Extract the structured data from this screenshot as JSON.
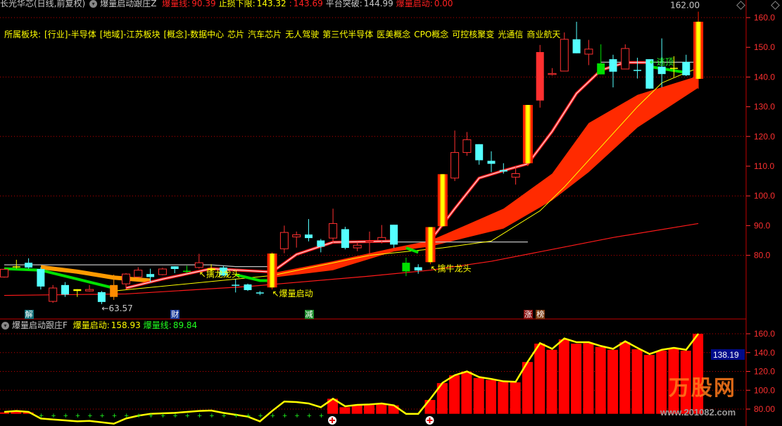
{
  "header": {
    "stock": "长光华芯(日线,前复权)",
    "indicator": "爆量启动跟庄Z",
    "items": [
      {
        "label": "爆量线:",
        "value": "90.39",
        "color": "#ff2020"
      },
      {
        "label": "止损下限:",
        "value": "143.32",
        "color": "#ffff00"
      },
      {
        "label": ":",
        "value": "143.69",
        "color": "#ff2020"
      },
      {
        "label": "平台突破:",
        "value": "144.99",
        "color": "#c8c8c8"
      },
      {
        "label": "爆量启动:",
        "value": "0.00",
        "color": "#ff2020"
      }
    ]
  },
  "sector": {
    "label": "所属板块:",
    "items": [
      "[行业]-半导体",
      "[地域]-江苏板块",
      "[概念]-数据中心",
      "芯片",
      "汽车芯片",
      "无人驾驶",
      "第三代半导体",
      "医美概念",
      "CPO概念",
      "可控核聚变",
      "光通信",
      "商业航天"
    ]
  },
  "sub_header": {
    "indicator": "爆量启动跟庄F",
    "items": [
      {
        "label": "爆量启动:",
        "value": "158.93",
        "color": "#ffff00"
      },
      {
        "label": "爆量线:",
        "value": "89.84",
        "color": "#20ff20"
      }
    ]
  },
  "markers": [
    {
      "index": 2,
      "text": "解",
      "bg": "#10707a"
    },
    {
      "index": 14,
      "text": "财",
      "bg": "#1a3a9a"
    },
    {
      "index": 25,
      "text": "减",
      "bg": "#1a8a2a"
    },
    {
      "index": 43,
      "text": "涨",
      "bg": "#8a1010"
    },
    {
      "index": 44,
      "text": "榜",
      "bg": "#7a3a10"
    }
  ],
  "logo": {
    "text": "万股网",
    "url": "www.201082.com"
  },
  "colors": {
    "up": "#ff3030",
    "down": "#54ffff",
    "signal_red": "#ff2000",
    "signal_yellow": "#ffff00",
    "signal_orange": "#ff8c00",
    "grid": "#c00000",
    "axis": "#ff3030"
  },
  "chart_data": [
    {
      "type": "candlestick",
      "panel": "main",
      "ylim": [
        63,
        163
      ],
      "yticks": [
        "160.0",
        "150.0",
        "140.0",
        "130.0",
        "120.0",
        "110.0",
        "100.0",
        "90.0",
        "80.0"
      ],
      "ytick_values": [
        160,
        150,
        140,
        130,
        120,
        110,
        100,
        90,
        80
      ],
      "grid_values": [
        160,
        140,
        120,
        100,
        80
      ],
      "candles": [
        {
          "o": 72.7,
          "h": 75.5,
          "l": 72.5,
          "c": 75.3,
          "s": "up"
        },
        {
          "o": 76,
          "h": 78.5,
          "l": 75.5,
          "c": 76.3,
          "s": "yellow"
        },
        {
          "o": 77.5,
          "h": 79,
          "l": 75.5,
          "c": 75.9,
          "s": "down"
        },
        {
          "o": 75.4,
          "h": 76,
          "l": 68.5,
          "c": 69.5,
          "s": "down"
        },
        {
          "o": 64.5,
          "h": 70,
          "l": 64,
          "c": 69,
          "s": "up"
        },
        {
          "o": 70,
          "h": 71,
          "l": 66,
          "c": 66.8,
          "s": "down"
        },
        {
          "o": 68,
          "h": 68.6,
          "l": 66,
          "c": 68.6,
          "s": "yellow"
        },
        {
          "o": 68,
          "h": 70,
          "l": 67.8,
          "c": 68.5,
          "s": "up"
        },
        {
          "o": 67.6,
          "h": 68,
          "l": 63.57,
          "c": 64.3,
          "s": "down"
        },
        {
          "o": 66,
          "h": 73.5,
          "l": 65,
          "c": 70,
          "s": "orange"
        },
        {
          "o": 70.4,
          "h": 74,
          "l": 68.5,
          "c": 73.7,
          "s": "up"
        },
        {
          "o": 72.7,
          "h": 76,
          "l": 72.5,
          "c": 75,
          "s": "up"
        },
        {
          "o": 73.7,
          "h": 75.5,
          "l": 71,
          "c": 72.7,
          "s": "down"
        },
        {
          "o": 73.5,
          "h": 75.8,
          "l": 73.3,
          "c": 75.4,
          "s": "up"
        },
        {
          "o": 76.3,
          "h": 76.3,
          "l": 74,
          "c": 75.4,
          "s": "down"
        },
        {
          "o": 74.8,
          "h": 76.5,
          "l": 74,
          "c": 74.6,
          "s": "green"
        },
        {
          "o": 75.9,
          "h": 80.5,
          "l": 75.5,
          "c": 77.5,
          "s": "up"
        },
        {
          "o": 75,
          "h": 77,
          "l": 74.5,
          "c": 75.6,
          "s": "yellow"
        },
        {
          "o": 75.9,
          "h": 76.5,
          "l": 73,
          "c": 73.2,
          "s": "down"
        },
        {
          "o": 70,
          "h": 72,
          "l": 67.5,
          "c": 70.1,
          "s": "down"
        },
        {
          "o": 70.2,
          "h": 70.5,
          "l": 68,
          "c": 68.3,
          "s": "down"
        },
        {
          "o": 67.4,
          "h": 68,
          "l": 66.6,
          "c": 67.5,
          "s": "down"
        },
        {
          "o": 69.2,
          "h": 81,
          "l": 68.5,
          "c": 80.6,
          "s": "signal"
        },
        {
          "o": 82.2,
          "h": 90,
          "l": 80.7,
          "c": 87.7,
          "s": "up"
        },
        {
          "o": 86.2,
          "h": 88,
          "l": 82.6,
          "c": 86.9,
          "s": "up"
        },
        {
          "o": 87,
          "h": 92.2,
          "l": 84.7,
          "c": 85.8,
          "s": "down"
        },
        {
          "o": 85,
          "h": 85.5,
          "l": 81,
          "c": 82.9,
          "s": "down"
        },
        {
          "o": 85.8,
          "h": 95.7,
          "l": 84,
          "c": 90.7,
          "s": "up"
        },
        {
          "o": 88.8,
          "h": 89.6,
          "l": 82,
          "c": 82.5,
          "s": "down"
        },
        {
          "o": 82.5,
          "h": 84.5,
          "l": 81.4,
          "c": 83.4,
          "s": "up"
        },
        {
          "o": 84.6,
          "h": 88,
          "l": 80,
          "c": 84.7,
          "s": "up"
        },
        {
          "o": 85,
          "h": 90.2,
          "l": 84,
          "c": 86,
          "s": "up"
        },
        {
          "o": 90.3,
          "h": 90.3,
          "l": 82.5,
          "c": 83.6,
          "s": "down"
        },
        {
          "o": 77.5,
          "h": 79.2,
          "l": 73,
          "c": 74.6,
          "s": "green"
        },
        {
          "o": 76,
          "h": 77,
          "l": 73.8,
          "c": 74.9,
          "s": "down"
        },
        {
          "o": 77.7,
          "h": 89.5,
          "l": 77,
          "c": 89.5,
          "s": "signal"
        },
        {
          "o": 89.8,
          "h": 107.3,
          "l": 89.5,
          "c": 107.3,
          "s": "signal"
        },
        {
          "o": 106,
          "h": 122,
          "l": 105,
          "c": 114.6,
          "s": "up"
        },
        {
          "o": 114.6,
          "h": 121.5,
          "l": 113.5,
          "c": 118.9,
          "s": "up"
        },
        {
          "o": 117.4,
          "h": 117.4,
          "l": 110.5,
          "c": 112,
          "s": "down"
        },
        {
          "o": 111.8,
          "h": 115,
          "l": 108,
          "c": 110.8,
          "s": "down"
        },
        {
          "o": 108.7,
          "h": 111,
          "l": 107.5,
          "c": 108.2,
          "s": "down"
        },
        {
          "o": 106.3,
          "h": 110,
          "l": 103.8,
          "c": 107.5,
          "s": "up"
        },
        {
          "o": 111,
          "h": 130.6,
          "l": 110,
          "c": 130.6,
          "s": "signal"
        },
        {
          "o": 148.4,
          "h": 150.8,
          "l": 129.7,
          "c": 132.1,
          "s": "solid"
        },
        {
          "o": 141,
          "h": 143,
          "l": 140.5,
          "c": 141.2,
          "s": "up"
        },
        {
          "o": 142,
          "h": 155,
          "l": 142,
          "c": 152.7,
          "s": "up"
        },
        {
          "o": 152.7,
          "h": 158.6,
          "l": 148,
          "c": 148,
          "s": "down"
        },
        {
          "o": 147.7,
          "h": 152.5,
          "l": 144,
          "c": 149.4,
          "s": "up"
        },
        {
          "o": 144.6,
          "h": 151,
          "l": 140.9,
          "c": 140.9,
          "s": "green"
        },
        {
          "o": 146,
          "h": 147.5,
          "l": 136.5,
          "c": 141.8,
          "s": "down"
        },
        {
          "o": 142.7,
          "h": 151,
          "l": 142.7,
          "c": 149.6,
          "s": "up"
        },
        {
          "o": 142.4,
          "h": 146.5,
          "l": 139.5,
          "c": 142.3,
          "s": "down"
        },
        {
          "o": 146,
          "h": 146,
          "l": 136,
          "c": 136.1,
          "s": "down"
        },
        {
          "o": 143.5,
          "h": 153,
          "l": 136.5,
          "c": 141,
          "s": "down"
        },
        {
          "o": 143,
          "h": 147,
          "l": 140,
          "c": 143.1,
          "s": "yellow"
        },
        {
          "o": 145.1,
          "h": 147.5,
          "l": 140.3,
          "c": 140.6,
          "s": "down"
        },
        {
          "o": 139.4,
          "h": 162,
          "l": 136,
          "c": 158.6,
          "s": "signal"
        }
      ],
      "lines": [
        {
          "color": "#c0c0c0",
          "width": 1.2,
          "segments": [
            [
              [
                0,
                76.8
              ],
              [
                17,
                76.8
              ],
              [
                19,
                76.2
              ],
              [
                22,
                76.2
              ]
            ],
            [
              [
                31,
                84.5
              ],
              [
                43,
                84.5
              ]
            ],
            [
              [
                49,
                144.99
              ],
              [
                57,
                144.99
              ]
            ]
          ]
        },
        {
          "color": "#ff1a1a",
          "width": 1.2,
          "segments": [
            [
              [
                0,
                66.5
              ],
              [
                10,
                67
              ],
              [
                20,
                69.5
              ],
              [
                30,
                73
              ],
              [
                35,
                75
              ],
              [
                40,
                78
              ],
              [
                45,
                82
              ],
              [
                50,
                86
              ],
              [
                57,
                90.7
              ]
            ]
          ]
        },
        {
          "color": "#ffff00",
          "width": 1,
          "segments": [
            [
              [
                9,
                68
              ],
              [
                22,
                73.2
              ],
              [
                30,
                80
              ],
              [
                36,
                82.5
              ],
              [
                40,
                84.8
              ],
              [
                44,
                95
              ],
              [
                46,
                103
              ],
              [
                48,
                112
              ],
              [
                50,
                121
              ],
              [
                52,
                130
              ],
              [
                54,
                138
              ],
              [
                56,
                141.5
              ],
              [
                57,
                143
              ]
            ]
          ]
        },
        {
          "color": "#ff9a00",
          "width": 6,
          "segments": [
            [
              [
                3,
                76
              ],
              [
                6,
                74.5
              ],
              [
                9,
                72.5
              ],
              [
                12,
                71.5
              ]
            ]
          ]
        },
        {
          "color": "#00e000",
          "width": 4,
          "segments": [
            [
              [
                0,
                75.5
              ],
              [
                3,
                75
              ],
              [
                6,
                72
              ],
              [
                9,
                69
              ]
            ],
            [
              [
                19,
                73.5
              ],
              [
                21,
                71.5
              ],
              [
                22,
                71.5
              ]
            ],
            [
              [
                33,
                82.5
              ],
              [
                34,
                81
              ]
            ],
            [
              [
                53,
                143.5
              ],
              [
                56,
                141.5
              ]
            ]
          ]
        },
        {
          "color": "#ff2020",
          "width": 4,
          "core": "#ffffff",
          "segments": [
            [
              [
                10,
                69
              ],
              [
                13,
                72
              ],
              [
                17,
                75.5
              ],
              [
                22,
                74.4
              ],
              [
                24,
                80.3
              ],
              [
                27,
                84.4
              ],
              [
                32,
                84.8
              ]
            ],
            [
              [
                35,
                85
              ],
              [
                37,
                95.7
              ],
              [
                39,
                106
              ],
              [
                41,
                108.5
              ],
              [
                43,
                110.8
              ],
              [
                45,
                121.7
              ],
              [
                47,
                134.5
              ],
              [
                49,
                142.3
              ],
              [
                51,
                144.9
              ],
              [
                53,
                144.9
              ]
            ]
          ]
        }
      ],
      "ribbon": {
        "color": "#ff2a00",
        "points": [
          [
            22,
            74,
            72.5
          ],
          [
            27,
            78,
            75
          ],
          [
            32,
            82.5,
            81.3
          ],
          [
            35,
            85,
            83
          ],
          [
            38,
            90.3,
            86
          ],
          [
            41,
            95.7,
            89
          ],
          [
            45,
            107.5,
            98.5
          ],
          [
            48,
            124.5,
            108
          ],
          [
            52,
            134,
            123
          ],
          [
            57,
            140.4,
            136.4
          ]
        ]
      },
      "annotations": [
        {
          "index": 8,
          "value": 63.57,
          "text": "←63.57",
          "color": "#c8c8c8"
        },
        {
          "index": 57,
          "value": 162,
          "text": "162.00",
          "color": "#c8c8c8"
        },
        {
          "index": 22,
          "value": 68.5,
          "text": "↖爆量启动",
          "color": "#ffff00"
        },
        {
          "index": 16,
          "value": 75,
          "text": "↖擒龙龙头",
          "color": "#ffff00"
        },
        {
          "index": 35,
          "value": 77,
          "text": "↖擒牛龙头",
          "color": "#ffff00"
        },
        {
          "index": 53,
          "value": 146.5,
          "text": "←逃顶",
          "color": "#20ff20"
        }
      ]
    },
    {
      "type": "bar",
      "panel": "sub",
      "ylim": [
        72,
        168
      ],
      "yticks": [
        "160.0",
        "140.0",
        "120.0",
        "100.0",
        "80.00"
      ],
      "ytick_values": [
        160,
        140,
        120,
        100,
        80
      ],
      "grid_values": [
        160,
        140,
        120,
        100,
        80
      ],
      "current_value": "138.19",
      "bar_base": 75,
      "bars": [
        76.5,
        77,
        76.5,
        null,
        null,
        null,
        null,
        null,
        null,
        null,
        null,
        null,
        null,
        null,
        null,
        null,
        null,
        null,
        null,
        null,
        null,
        null,
        null,
        null,
        null,
        null,
        null,
        91,
        82,
        84.5,
        85,
        86,
        84,
        null,
        null,
        89.7,
        107.6,
        115.9,
        119.8,
        113,
        111,
        109,
        108.4,
        130,
        149.5,
        143,
        154,
        149.5,
        150,
        146,
        143,
        151,
        143.5,
        137.5,
        142,
        144.6,
        142,
        160
      ],
      "line": [
        77,
        78,
        77,
        70,
        69,
        68,
        67,
        67.5,
        66,
        64.5,
        70,
        73,
        75,
        75.5,
        76,
        77,
        78,
        78.5,
        76,
        74,
        72,
        67,
        78,
        88,
        87.5,
        86,
        82,
        91,
        83,
        84.5,
        85,
        86,
        84,
        75,
        75,
        91,
        108,
        116,
        120,
        114,
        112,
        109.5,
        109,
        130.5,
        150,
        144,
        155,
        151,
        151,
        147,
        144,
        152,
        145,
        138.5,
        143,
        145,
        143,
        160
      ],
      "plus_markers": [
        3,
        4,
        5,
        6,
        7,
        8,
        9,
        10,
        11,
        12,
        13,
        14,
        15,
        16,
        17,
        18,
        19,
        20,
        21,
        22,
        23,
        24,
        25,
        26
      ],
      "circle_plus": [
        27,
        35
      ]
    }
  ]
}
